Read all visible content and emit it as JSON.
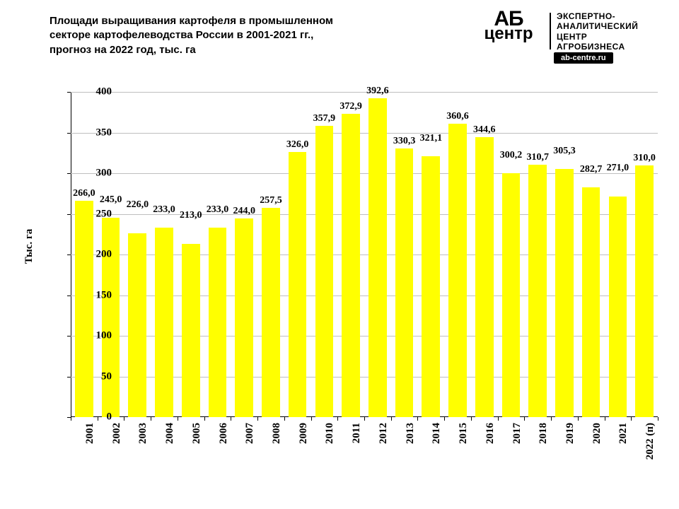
{
  "title": "Площади выращивания картофеля в промышленном секторе картофелеводства России в 2001-2021 гг., прогноз на 2022 год, тыс. га",
  "logo": {
    "mark_top": "АБ",
    "mark_bottom": "центр",
    "text_line1": "ЭКСПЕРТНО-",
    "text_line2": "АНАЛИТИЧЕСКИЙ",
    "text_line3": "ЦЕНТР",
    "text_line4": "АГРОБИЗНЕСА",
    "url": "ab-centre.ru"
  },
  "chart": {
    "type": "bar",
    "y_axis_title": "Тыс. га",
    "ylim": [
      0,
      400
    ],
    "yticks": [
      0,
      50,
      100,
      150,
      200,
      250,
      300,
      350,
      400
    ],
    "grid_color": "#bfbfbf",
    "axis_color": "#000000",
    "bar_color": "#ffff00",
    "background_color": "#ffffff",
    "bar_width_ratio": 0.68,
    "label_fontsize": 14,
    "tick_fontsize": 15,
    "title_fontsize": 15,
    "categories": [
      "2001",
      "2002",
      "2003",
      "2004",
      "2005",
      "2006",
      "2007",
      "2008",
      "2009",
      "2010",
      "2011",
      "2012",
      "2013",
      "2014",
      "2015",
      "2016",
      "2017",
      "2018",
      "2019",
      "2020",
      "2021",
      "2022 (п)"
    ],
    "values": [
      266.0,
      245.0,
      226.0,
      233.0,
      213.0,
      233.0,
      244.0,
      257.5,
      326.0,
      357.9,
      372.9,
      392.6,
      330.3,
      321.1,
      360.6,
      344.6,
      300.2,
      310.7,
      305.3,
      282.7,
      271.0,
      310.0
    ],
    "labels": [
      "266,0",
      "245,0",
      "226,0",
      "233,0",
      "213,0",
      "233,0",
      "244,0",
      "257,5",
      "326,0",
      "357,9",
      "372,9",
      "392,6",
      "330,3",
      "321,1",
      "360,6",
      "344,6",
      "300,2",
      "310,7",
      "305,3",
      "282,7",
      "271,0",
      "310,0"
    ],
    "label_y_offsets": [
      0,
      0,
      0,
      0,
      0,
      0,
      0,
      0,
      0,
      0,
      0,
      0,
      0,
      0,
      0,
      0,
      0,
      0,
      0,
      0,
      0,
      0
    ]
  }
}
